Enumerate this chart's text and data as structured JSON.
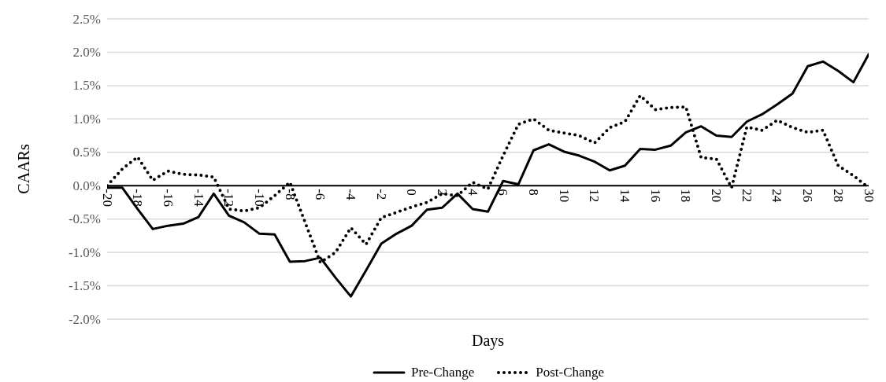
{
  "chart_data": {
    "type": "line",
    "xlabel": "Days",
    "ylabel": "CAARs",
    "x": [
      -20,
      -19,
      -18,
      -17,
      -16,
      -15,
      -14,
      -13,
      -12,
      -11,
      -10,
      -9,
      -8,
      -7,
      -6,
      -5,
      -4,
      -3,
      -2,
      -1,
      0,
      1,
      2,
      3,
      4,
      5,
      6,
      7,
      8,
      9,
      10,
      11,
      12,
      13,
      14,
      15,
      16,
      17,
      18,
      19,
      20,
      21,
      22,
      23,
      24,
      25,
      26,
      27,
      28,
      29,
      30
    ],
    "series": [
      {
        "name": "Pre-Change",
        "color": "#000000",
        "line_style": "solid",
        "values": [
          -0.03,
          -0.03,
          -0.35,
          -0.65,
          -0.6,
          -0.57,
          -0.47,
          -0.12,
          -0.45,
          -0.55,
          -0.72,
          -0.73,
          -1.14,
          -1.13,
          -1.08,
          -1.38,
          -1.66,
          -1.27,
          -0.87,
          -0.72,
          -0.6,
          -0.36,
          -0.33,
          -0.12,
          -0.35,
          -0.39,
          0.07,
          0.02,
          0.53,
          0.62,
          0.51,
          0.45,
          0.36,
          0.23,
          0.3,
          0.55,
          0.54,
          0.6,
          0.8,
          0.89,
          0.75,
          0.73,
          0.96,
          1.07,
          1.22,
          1.38,
          1.79,
          1.86,
          1.72,
          1.55,
          1.97
        ]
      },
      {
        "name": "Post-Change",
        "color": "#000000",
        "line_style": "dotted",
        "values": [
          0.0,
          0.25,
          0.43,
          0.08,
          0.22,
          0.17,
          0.16,
          0.13,
          -0.35,
          -0.38,
          -0.33,
          -0.15,
          0.05,
          -0.55,
          -1.15,
          -1.0,
          -0.63,
          -0.88,
          -0.48,
          -0.4,
          -0.32,
          -0.25,
          -0.12,
          -0.15,
          0.05,
          -0.05,
          0.45,
          0.92,
          1.0,
          0.83,
          0.79,
          0.75,
          0.64,
          0.87,
          0.96,
          1.35,
          1.14,
          1.17,
          1.18,
          0.42,
          0.4,
          -0.03,
          0.88,
          0.83,
          0.98,
          0.87,
          0.8,
          0.83,
          0.3,
          0.15,
          -0.03
        ]
      }
    ],
    "xlim": [
      -20,
      30
    ],
    "xticks": [
      -20,
      -18,
      -16,
      -14,
      -12,
      -10,
      -8,
      -6,
      -4,
      -2,
      0,
      2,
      4,
      6,
      8,
      10,
      12,
      14,
      16,
      18,
      20,
      22,
      24,
      26,
      28,
      30
    ],
    "ylim": [
      -2.0,
      2.5
    ],
    "yticks": [
      {
        "value": -2.0,
        "label": "-2.0%"
      },
      {
        "value": -1.5,
        "label": "-1.5%"
      },
      {
        "value": -1.0,
        "label": "-1.0%"
      },
      {
        "value": -0.5,
        "label": "-0.5%"
      },
      {
        "value": 0.0,
        "label": "0.0%"
      },
      {
        "value": 0.5,
        "label": "0.5%"
      },
      {
        "value": 1.0,
        "label": "1.0%"
      },
      {
        "value": 1.5,
        "label": "1.5%"
      },
      {
        "value": 2.0,
        "label": "2.0%"
      },
      {
        "value": 2.5,
        "label": "2.5%"
      }
    ],
    "grid": "y",
    "legend": "bottom",
    "marker": "none"
  }
}
